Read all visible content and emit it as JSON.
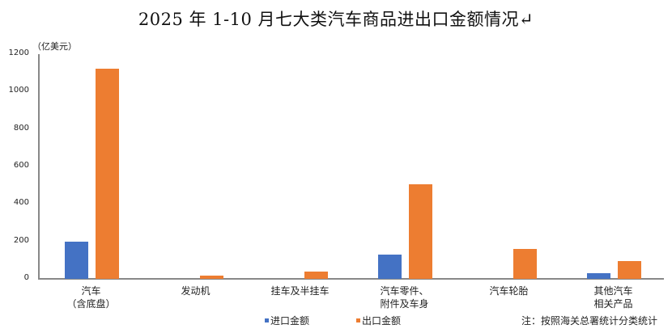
{
  "chart_data": {
    "type": "bar",
    "title": "2025 年 1-10 月七大类汽车商品进出口金额情况↵",
    "ylabel": "（亿美元）",
    "xlabel": "",
    "ylim": [
      0,
      1200
    ],
    "yticks": [
      0,
      200,
      400,
      600,
      800,
      1000,
      1200
    ],
    "grid": false,
    "legend_position": "bottom",
    "categories": [
      "汽车\n（含底盘）",
      "发动机",
      "挂车及半挂车",
      "汽车零件、\n附件及车身",
      "汽车轮胎",
      "其他汽车\n相关产品"
    ],
    "series": [
      {
        "name": "进口金额",
        "color": "#4472c4",
        "values": [
          199,
          0,
          0,
          131,
          0,
          29
        ]
      },
      {
        "name": "出口金额",
        "color": "#ed7d31",
        "values": [
          1122,
          16,
          40,
          507,
          159,
          95
        ]
      }
    ],
    "annotations": [
      "注：按照海关总署统计分类统计"
    ]
  },
  "labels": {
    "title": "2025 年 1-10 月七大类汽车商品进出口金额情况↵",
    "unit": "（亿美元）",
    "yticks": [
      "1200",
      "1000",
      "800",
      "600",
      "400",
      "200",
      "0"
    ],
    "categories": [
      "汽车\n（含底盘）",
      "发动机",
      "挂车及半挂车",
      "汽车零件、\n附件及车身",
      "汽车轮胎",
      "其他汽车\n相关产品"
    ],
    "legend_import": "进口金额",
    "legend_export": "出口金额",
    "note": "注：按照海关总署统计分类统计"
  }
}
